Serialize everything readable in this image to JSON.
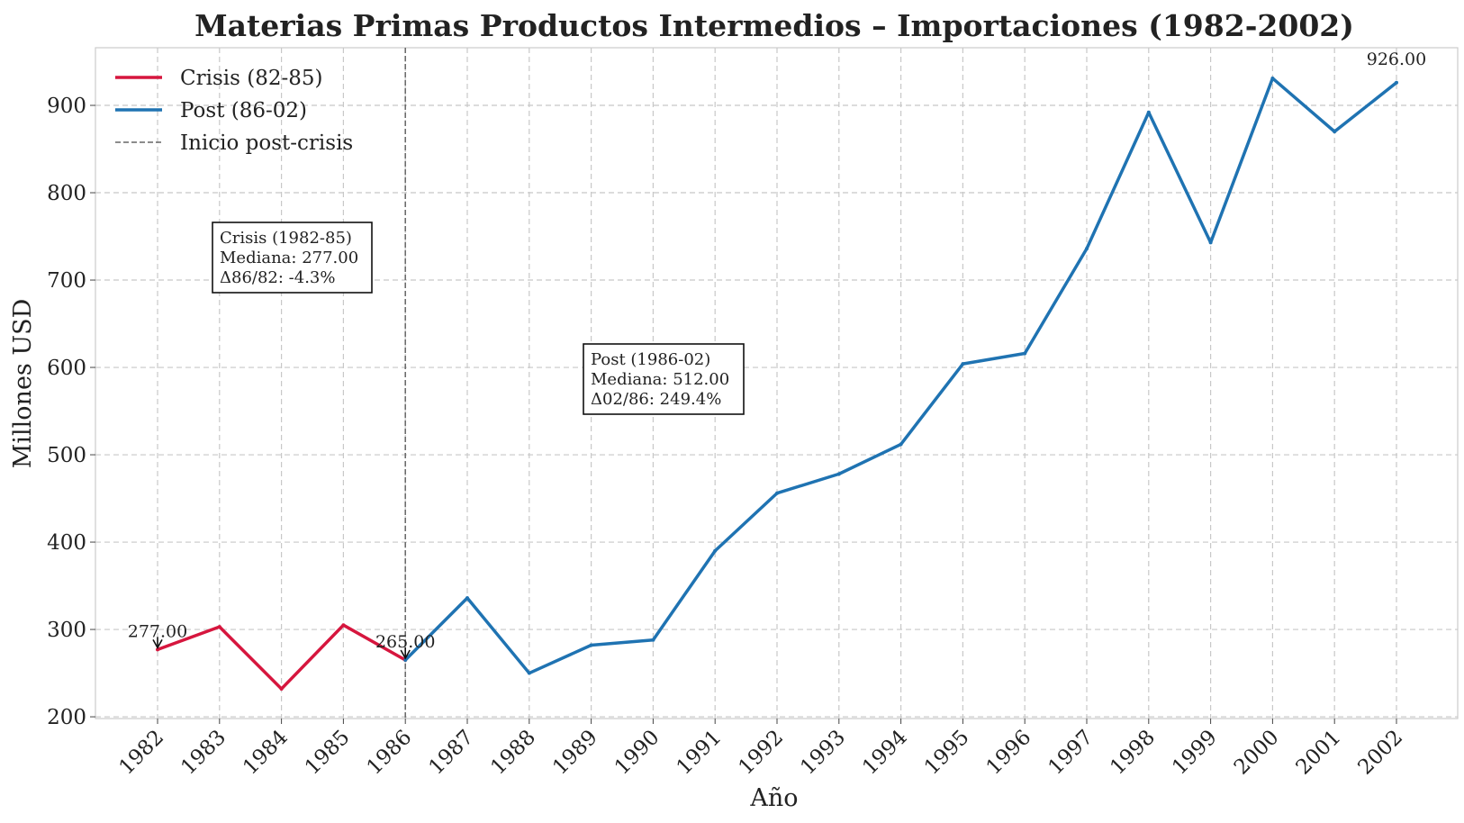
{
  "chart_data": {
    "type": "line",
    "title": "Materias Primas Productos Intermedios – Importaciones (1982-2002)",
    "xlabel": "Año",
    "ylabel": "Millones USD",
    "x": [
      "1982",
      "1983",
      "1984",
      "1985",
      "1986",
      "1987",
      "1988",
      "1989",
      "1990",
      "1991",
      "1992",
      "1993",
      "1994",
      "1995",
      "1996",
      "1997",
      "1998",
      "1999",
      "2000",
      "2001",
      "2002"
    ],
    "ylim": [
      198,
      966
    ],
    "yticks": [
      200,
      300,
      400,
      500,
      600,
      700,
      800,
      900
    ],
    "grid": true,
    "legend_position": "top-left",
    "series": [
      {
        "name": "Crisis (82-85)",
        "color": "#d6163e",
        "x": [
          "1982",
          "1983",
          "1984",
          "1985",
          "1986"
        ],
        "values": [
          277,
          303,
          232,
          305,
          265
        ]
      },
      {
        "name": "Post (86-02)",
        "color": "#1f73b2",
        "x": [
          "1986",
          "1987",
          "1988",
          "1989",
          "1990",
          "1991",
          "1992",
          "1993",
          "1994",
          "1995",
          "1996",
          "1997",
          "1998",
          "1999",
          "2000",
          "2001",
          "2002"
        ],
        "values": [
          265,
          336,
          250,
          282,
          288,
          390,
          456,
          478,
          512,
          604,
          616,
          736,
          892,
          743,
          931,
          870,
          926
        ]
      }
    ],
    "vline": {
      "x": "1986",
      "label": "Inicio post-crisis",
      "color": "#666666"
    },
    "point_labels": [
      {
        "x": "1982",
        "value": 277,
        "text": "277.00"
      },
      {
        "x": "1986",
        "value": 265,
        "text": "265.00"
      },
      {
        "x": "2002",
        "value": 926,
        "text": "926.00"
      }
    ],
    "annotation_boxes": [
      {
        "lines": [
          "Crisis (1982-85)",
          "Mediana: 277.00",
          "Δ86/82: -4.3%"
        ]
      },
      {
        "lines": [
          "Post (1986-02)",
          "Mediana: 512.00",
          "Δ02/86: 249.4%"
        ]
      }
    ]
  }
}
